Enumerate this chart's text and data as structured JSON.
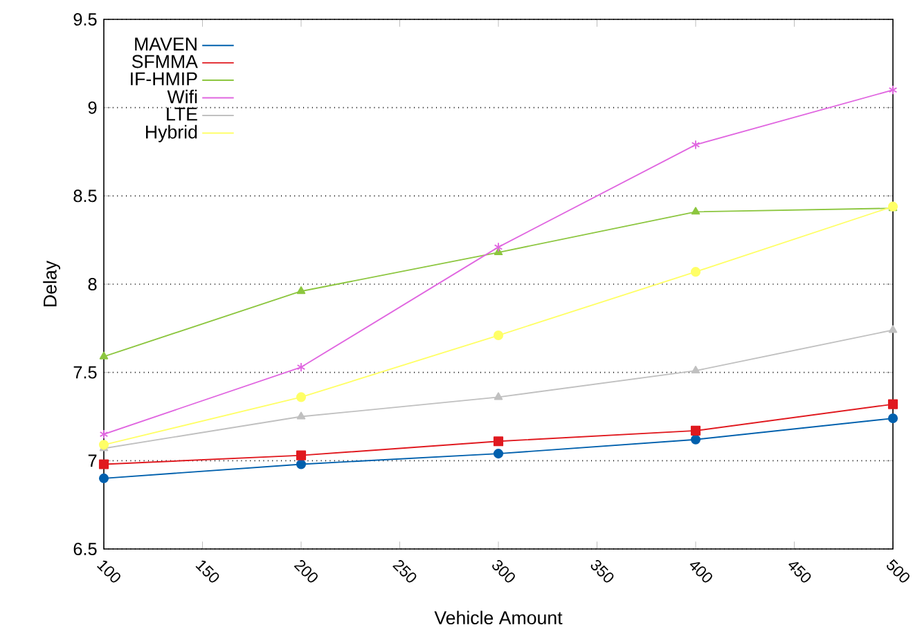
{
  "chart_data": {
    "type": "line",
    "xlabel": "Vehicle Amount",
    "ylabel": "Delay",
    "x": [
      100,
      200,
      300,
      400,
      500
    ],
    "series": [
      {
        "name": "MAVEN",
        "color": "#0060ad",
        "marker": "circle",
        "values": [
          6.9,
          6.98,
          7.04,
          7.12,
          7.24
        ]
      },
      {
        "name": "SFMMA",
        "color": "#e0191f",
        "marker": "square",
        "values": [
          6.98,
          7.03,
          7.11,
          7.17,
          7.32
        ]
      },
      {
        "name": "IF-HMIP",
        "color": "#8cc63f",
        "marker": "triangle",
        "values": [
          7.59,
          7.96,
          8.18,
          8.41,
          8.43
        ]
      },
      {
        "name": "Wifi",
        "color": "#e066e0",
        "marker": "cross",
        "values": [
          7.15,
          7.53,
          8.21,
          8.79,
          9.1
        ]
      },
      {
        "name": "LTE",
        "color": "#c0c0c0",
        "marker": "triangle",
        "values": [
          7.07,
          7.25,
          7.36,
          7.51,
          7.74
        ]
      },
      {
        "name": "Hybrid",
        "color": "#ffff66",
        "marker": "circle",
        "values": [
          7.09,
          7.36,
          7.71,
          8.07,
          8.44
        ]
      }
    ],
    "xlim": [
      100,
      500
    ],
    "xticks": [
      100,
      150,
      200,
      250,
      300,
      350,
      400,
      450,
      500
    ],
    "ylim": [
      6.5,
      9.5
    ],
    "yticks": [
      6.5,
      7,
      7.5,
      8,
      8.5,
      9,
      9.5
    ],
    "grid": "y",
    "legend": "top left",
    "line_style": "solid"
  }
}
